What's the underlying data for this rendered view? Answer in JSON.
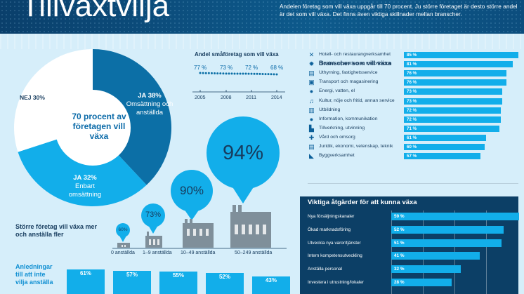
{
  "header": {
    "title": "Tillväxtvilja",
    "lead": "Andelen företag som vill växa uppgår till 70 procent. Ju större företaget är desto större andel är det som vill växa. Det finns även viktiga skillnader mellan branscher."
  },
  "pie": {
    "center": "70 procent av företagen vill växa",
    "slices": [
      {
        "head": "JA 38%",
        "sub": "Omsättning och anställda",
        "value": 38,
        "color": "#0c6fa6"
      },
      {
        "head": "JA 32%",
        "sub": "Enbart omsättning",
        "value": 32,
        "color": "#12aeea"
      },
      {
        "head": "NEJ 30%",
        "sub": "",
        "value": 30,
        "color": "#ffffff"
      }
    ]
  },
  "trend": {
    "title": "Andel småföretag som vill växa",
    "points": [
      {
        "year": "2005",
        "label": "77 %",
        "value": 77
      },
      {
        "year": "2008",
        "label": "73 %",
        "value": 73
      },
      {
        "year": "2011",
        "label": "72 %",
        "value": 72
      },
      {
        "year": "2014",
        "label": "68 %",
        "value": 68
      }
    ]
  },
  "size": {
    "title": "Större företag vill växa mer och anställa fler",
    "groups": [
      {
        "label": "0 anställda",
        "pct": "60%",
        "value": 60
      },
      {
        "label": "1–9 anställda",
        "pct": "73%",
        "value": 73
      },
      {
        "label": "10–49 anställda",
        "pct": "90%",
        "value": 90
      },
      {
        "label": "50–249 anställda",
        "pct": "94%",
        "value": 94
      }
    ]
  },
  "reasons": {
    "title": "Anledningar till att inte vilja anställa",
    "values": [
      {
        "label": "61%",
        "value": 61
      },
      {
        "label": "57%",
        "value": 57
      },
      {
        "label": "55%",
        "value": 55
      },
      {
        "label": "52%",
        "value": 52
      },
      {
        "label": "43%",
        "value": 43
      }
    ]
  },
  "sectors": {
    "title": "Branscher som vill växa",
    "items": [
      {
        "label": "Hotell- och restaurangverksamhet",
        "pct": "85 %",
        "value": 85,
        "icon": "cutlery-icon"
      },
      {
        "label": "Handel, reparation av motorfordon",
        "pct": "81 %",
        "value": 81,
        "icon": "gear-icon"
      },
      {
        "label": "Uthyrning, fastighetsservice",
        "pct": "76 %",
        "value": 76,
        "icon": "truck-icon"
      },
      {
        "label": "Transport och magasinering",
        "pct": "76 %",
        "value": 76,
        "icon": "bus-icon"
      },
      {
        "label": "Energi, vatten, el",
        "pct": "73 %",
        "value": 73,
        "icon": "drop-icon"
      },
      {
        "label": "Kultur, nöje och fritid, annan service",
        "pct": "73 %",
        "value": 73,
        "icon": "music-icon"
      },
      {
        "label": "Utbildning",
        "pct": "72 %",
        "value": 72,
        "icon": "building-icon"
      },
      {
        "label": "Information, kommunikation",
        "pct": "72 %",
        "value": 72,
        "icon": "speech-icon"
      },
      {
        "label": "Tillverkning, utvinning",
        "pct": "71 %",
        "value": 71,
        "icon": "factory-icon"
      },
      {
        "label": "Vård och omsorg",
        "pct": "61 %",
        "value": 61,
        "icon": "cross-icon"
      },
      {
        "label": "Juridik, ekonomi, vetenskap, teknik",
        "pct": "60 %",
        "value": 60,
        "icon": "document-icon"
      },
      {
        "label": "Byggverksamhet",
        "pct": "57 %",
        "value": 57,
        "icon": "trowel-icon"
      }
    ]
  },
  "measures": {
    "title": "Viktiga åtgärder för att kunna växa",
    "items": [
      {
        "label": "Nya försäljningskanaler",
        "pct": "59 %",
        "value": 59
      },
      {
        "label": "Ökad marknadsföring",
        "pct": "52 %",
        "value": 52
      },
      {
        "label": "Utveckla nya varor/tjänster",
        "pct": "51 %",
        "value": 51
      },
      {
        "label": "Intern kompetensutveckling",
        "pct": "41 %",
        "value": 41
      },
      {
        "label": "Anställa personal",
        "pct": "32 %",
        "value": 32
      },
      {
        "label": "Investera i utrustning/lokaler",
        "pct": "28 %",
        "value": 28
      }
    ]
  }
}
